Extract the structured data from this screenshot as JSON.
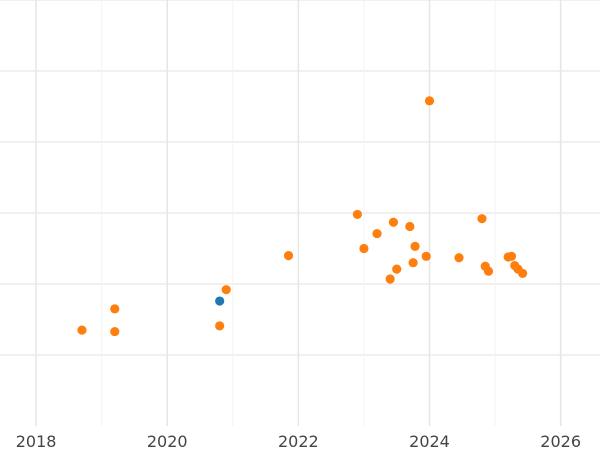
{
  "chart_data": {
    "type": "scatter",
    "title": "",
    "xlabel": "",
    "ylabel": "",
    "x_ticks": [
      "2018",
      "2020",
      "2022",
      "2024",
      "2026"
    ],
    "xlim": [
      2017.45,
      2026.6
    ],
    "ylim": [
      0,
      6
    ],
    "grid": true,
    "colors": {
      "orange": "#ff7f0e",
      "blue": "#1f77b4"
    },
    "series": [
      {
        "color": "orange",
        "points": [
          {
            "x": 2018.7,
            "y": 1.35
          },
          {
            "x": 2019.2,
            "y": 1.33
          },
          {
            "x": 2019.2,
            "y": 1.65
          },
          {
            "x": 2020.8,
            "y": 1.41
          },
          {
            "x": 2020.9,
            "y": 1.92
          },
          {
            "x": 2021.85,
            "y": 2.4
          },
          {
            "x": 2022.9,
            "y": 2.98
          },
          {
            "x": 2023.0,
            "y": 2.5
          },
          {
            "x": 2023.2,
            "y": 2.71
          },
          {
            "x": 2023.4,
            "y": 2.07
          },
          {
            "x": 2023.45,
            "y": 2.87
          },
          {
            "x": 2023.5,
            "y": 2.21
          },
          {
            "x": 2023.7,
            "y": 2.81
          },
          {
            "x": 2023.75,
            "y": 2.3
          },
          {
            "x": 2023.78,
            "y": 2.53
          },
          {
            "x": 2023.95,
            "y": 2.39
          },
          {
            "x": 2024.0,
            "y": 4.58
          },
          {
            "x": 2024.45,
            "y": 2.37
          },
          {
            "x": 2024.8,
            "y": 2.92
          },
          {
            "x": 2024.85,
            "y": 2.25
          },
          {
            "x": 2024.9,
            "y": 2.18
          },
          {
            "x": 2025.2,
            "y": 2.38
          },
          {
            "x": 2025.25,
            "y": 2.39
          },
          {
            "x": 2025.3,
            "y": 2.26
          },
          {
            "x": 2025.35,
            "y": 2.21
          },
          {
            "x": 2025.42,
            "y": 2.15
          }
        ]
      },
      {
        "color": "blue",
        "points": [
          {
            "x": 2020.8,
            "y": 1.76
          }
        ]
      }
    ]
  }
}
